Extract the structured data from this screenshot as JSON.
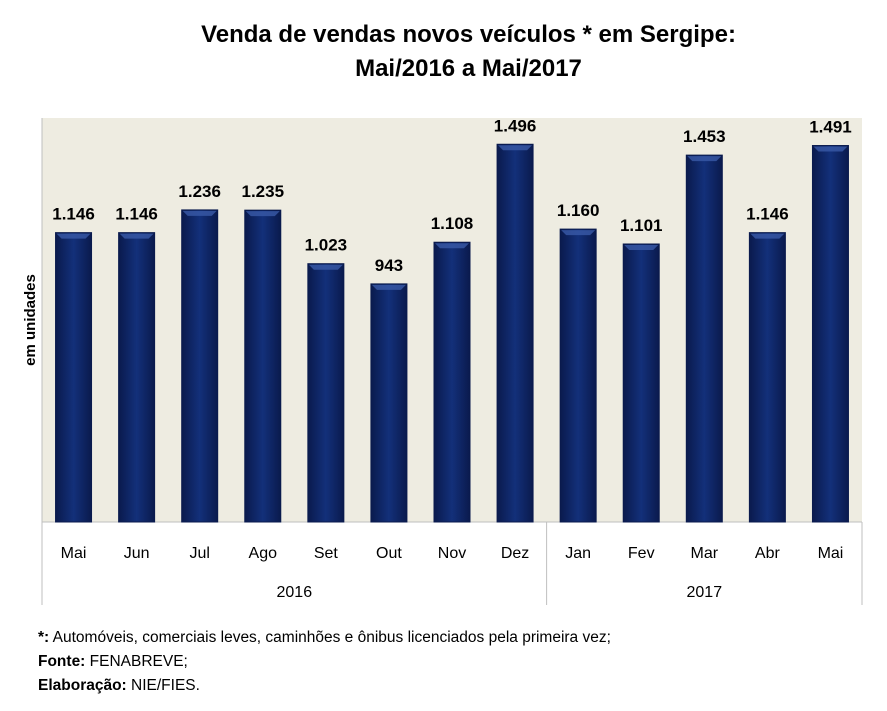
{
  "chart_data": {
    "type": "bar",
    "title": [
      "Venda de vendas novos veículos * em Sergipe:",
      "Mai/2016 a Mai/2017"
    ],
    "ylabel": "em unidades",
    "xlabel": "",
    "ylim": [
      0,
      1600
    ],
    "grid": false,
    "categories": [
      "Mai",
      "Jun",
      "Jul",
      "Ago",
      "Set",
      "Out",
      "Nov",
      "Dez",
      "Jan",
      "Fev",
      "Mar",
      "Abr",
      "Mai"
    ],
    "groups": [
      {
        "label": "2016",
        "count": 8
      },
      {
        "label": "2017",
        "count": 5
      }
    ],
    "values": [
      1146,
      1146,
      1236,
      1235,
      1023,
      943,
      1108,
      1496,
      1160,
      1101,
      1453,
      1146,
      1491
    ],
    "data_labels": [
      "1.146",
      "1.146",
      "1.236",
      "1.235",
      "1.023",
      "943",
      "1.108",
      "1.496",
      "1.160",
      "1.101",
      "1.453",
      "1.146",
      "1.491"
    ],
    "colors": {
      "bar": "#0f2566",
      "plot_bg": "#eeece1"
    }
  },
  "notes": {
    "footnote_key": "*:",
    "footnote_text": " Automóveis, comerciais leves, caminhões e ônibus licenciados pela primeira vez;",
    "source_key": "Fonte:",
    "source_text": " FENABREVE;",
    "credit_key": "Elaboração:",
    "credit_text": " NIE/FIES."
  }
}
